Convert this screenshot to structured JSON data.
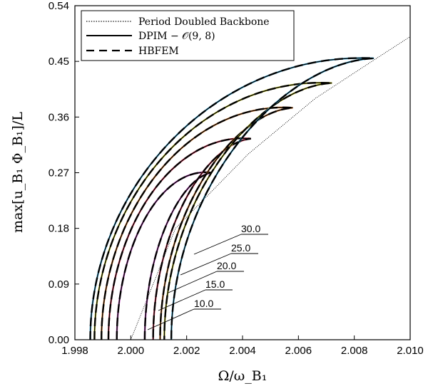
{
  "chart_data": {
    "type": "line",
    "title": "",
    "xlabel": "Ω/ω_B₁",
    "ylabel": "max[u_B₁ Φ_B₁]/L",
    "xlim": [
      1.998,
      2.01
    ],
    "ylim": [
      0.0,
      0.54
    ],
    "xticks": [
      "1.998",
      "2.000",
      "2.002",
      "2.004",
      "2.006",
      "2.008",
      "2.010"
    ],
    "yticks": [
      "0.00",
      "0.09",
      "0.18",
      "0.27",
      "0.36",
      "0.45",
      "0.54"
    ],
    "legend": {
      "position": "top-left",
      "entries": [
        {
          "label": "Period Doubled Backbone",
          "style": "dotted"
        },
        {
          "label": "DPIM − 𝒪(9, 8)",
          "style": "solid"
        },
        {
          "label": "HBFEM",
          "style": "dashed"
        }
      ]
    },
    "backbone": {
      "x": [
        2.0,
        2.0016,
        2.0042,
        2.0066,
        2.0088,
        2.01
      ],
      "y": [
        0.0,
        0.18,
        0.3,
        0.39,
        0.455,
        0.49
      ]
    },
    "series": [
      {
        "name": "10.0",
        "peak": [
          2.0029,
          0.27
        ],
        "left_base": 1.9995,
        "right_base": 2.0005,
        "hbfem_color": "#cc55cc"
      },
      {
        "name": "15.0",
        "peak": [
          2.0043,
          0.325
        ],
        "left_base": 1.9992,
        "right_base": 2.0008,
        "hbfem_color": "#ee4466"
      },
      {
        "name": "20.0",
        "peak": [
          2.0058,
          0.375
        ],
        "left_base": 1.99895,
        "right_base": 2.00105,
        "hbfem_color": "#ee8833"
      },
      {
        "name": "25.0",
        "peak": [
          2.0072,
          0.415
        ],
        "left_base": 1.9987,
        "right_base": 2.0012,
        "hbfem_color": "#dddd33"
      },
      {
        "name": "30.0",
        "peak": [
          2.0087,
          0.455
        ],
        "left_base": 1.99855,
        "right_base": 2.00145,
        "hbfem_color": "#44bbee"
      }
    ],
    "curve_labels": [
      "30.0",
      "25.0",
      "20.0",
      "15.0",
      "10.0"
    ],
    "grid": false
  }
}
